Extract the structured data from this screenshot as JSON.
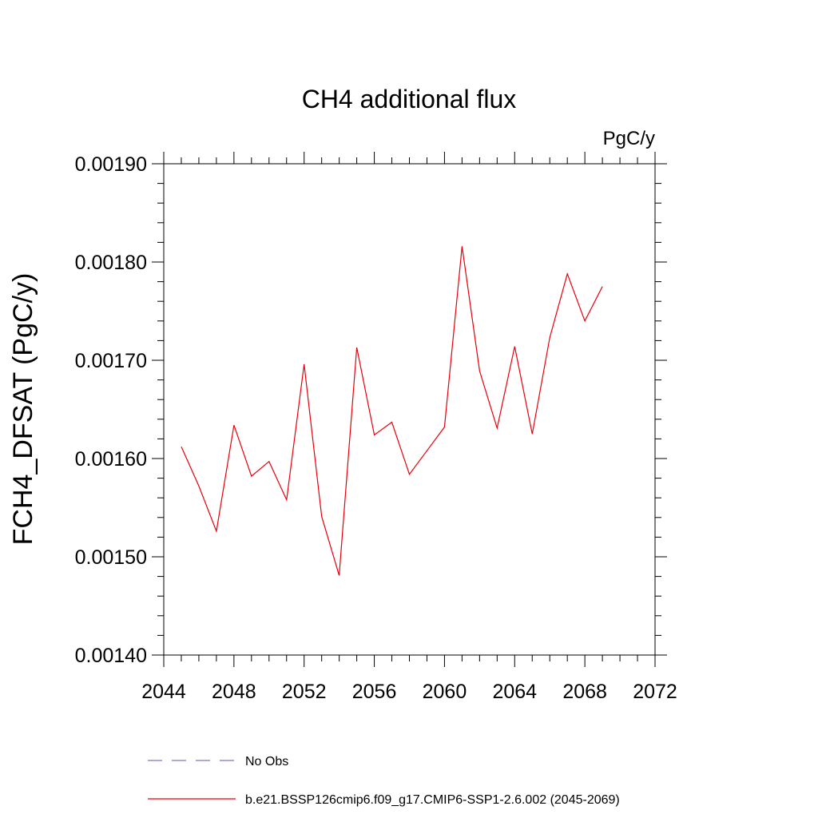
{
  "chart_data": {
    "type": "line",
    "title": "CH4 additional flux",
    "units": "PgC/y",
    "xlabel": "",
    "ylabel": "FCH4_DFSAT  (PgC/y)",
    "xlim": [
      2044,
      2072
    ],
    "ylim": [
      0.0014,
      0.0019
    ],
    "x_ticks": [
      2044,
      2048,
      2052,
      2056,
      2060,
      2064,
      2068,
      2072
    ],
    "y_ticks": [
      0.0014,
      0.0015,
      0.0016,
      0.0017,
      0.0018,
      0.0019
    ],
    "y_tick_labels": [
      "0.00140",
      "0.00150",
      "0.00160",
      "0.00170",
      "0.00180",
      "0.00190"
    ],
    "grid": false,
    "legend_position": "bottom",
    "series": [
      {
        "name": "No Obs",
        "color": "#7a78c4",
        "dash": "dashed",
        "x": [],
        "values": []
      },
      {
        "name": "b.e21.BSSP126cmip6.f09_g17.CMIP6-SSP1-2.6.002 (2045-2069)",
        "color": "#e8000b",
        "dash": "solid",
        "x": [
          2045,
          2046,
          2047,
          2048,
          2049,
          2050,
          2051,
          2052,
          2053,
          2054,
          2055,
          2056,
          2057,
          2058,
          2059,
          2060,
          2061,
          2062,
          2063,
          2064,
          2065,
          2066,
          2067,
          2068,
          2069
        ],
        "values": [
          0.001612,
          0.001572,
          0.001526,
          0.001634,
          0.001582,
          0.001597,
          0.001558,
          0.001696,
          0.001541,
          0.001481,
          0.001713,
          0.001624,
          0.001637,
          0.001584,
          0.001608,
          0.001632,
          0.001816,
          0.001689,
          0.001631,
          0.001714,
          0.001625,
          0.001723,
          0.001788,
          0.00174,
          0.001775
        ]
      }
    ]
  }
}
